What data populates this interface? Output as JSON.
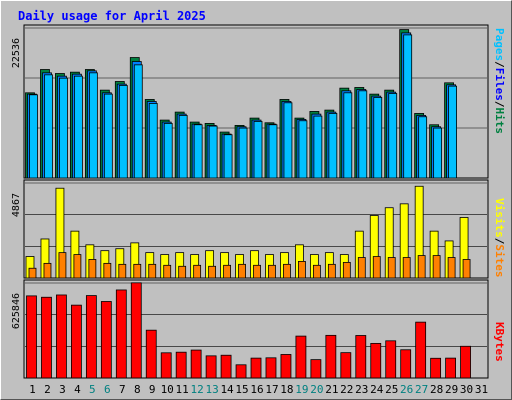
{
  "chart_data": {
    "type": "bar",
    "title": "Daily usage for April 2025",
    "categories": [
      "1",
      "2",
      "3",
      "4",
      "5",
      "6",
      "7",
      "8",
      "9",
      "10",
      "11",
      "12",
      "13",
      "14",
      "15",
      "16",
      "17",
      "18",
      "19",
      "20",
      "21",
      "22",
      "23",
      "24",
      "25",
      "26",
      "27",
      "28",
      "29",
      "30",
      "31"
    ],
    "weekend_days": [
      "5",
      "6",
      "12",
      "13",
      "19",
      "20",
      "26",
      "27"
    ],
    "colors": {
      "title": "#0000ff",
      "hits": "#008040",
      "files": "#0080ff",
      "files_legend": "#0000ff",
      "pages": "#00c0ff",
      "visits": "#ffff00",
      "visits_legend": "#ffff00",
      "sites": "#ff8000",
      "kbytes": "#ff0000",
      "weekend_label": "#008080",
      "plot_bg": "#c0c0c0"
    },
    "panels": [
      {
        "ymax_label": "22536",
        "ylim": [
          0,
          22536
        ],
        "legend": [
          "Pages",
          "Files",
          "Hits"
        ],
        "series": [
          {
            "name": "Hits",
            "values": [
              12800,
              16300,
              15700,
              15900,
              16300,
              13200,
              14500,
              18100,
              11800,
              8700,
              9900,
              8400,
              8200,
              6900,
              7900,
              9000,
              8300,
              11800,
              9000,
              10000,
              10200,
              13500,
              13600,
              12600,
              13200,
              22300,
              9700,
              8000,
              14300,
              null,
              null
            ]
          },
          {
            "name": "Files",
            "values": [
              12600,
              15800,
              15300,
              15600,
              16100,
              12800,
              14100,
              17500,
              11500,
              8400,
              9600,
              8100,
              7900,
              6600,
              7700,
              8700,
              8100,
              11500,
              8800,
              9600,
              9900,
              13100,
              13300,
              12300,
              12900,
              21800,
              9400,
              7700,
              14000,
              null,
              null
            ]
          },
          {
            "name": "Pages",
            "values": [
              12500,
              15500,
              15000,
              15300,
              15800,
              12600,
              13900,
              17000,
              11200,
              8200,
              9400,
              8000,
              7800,
              6500,
              7500,
              8500,
              8000,
              11300,
              8600,
              9300,
              9700,
              12800,
              13100,
              12100,
              12700,
              21500,
              9200,
              7500,
              13800,
              null,
              null
            ]
          }
        ]
      },
      {
        "ymax_label": "4867",
        "ylim": [
          0,
          4867
        ],
        "legend": [
          "Sites",
          "Visits"
        ],
        "series": [
          {
            "name": "Visits",
            "values": [
              1100,
              2000,
              4600,
              2400,
              1700,
              1400,
              1500,
              1800,
              1300,
              1200,
              1300,
              1200,
              1400,
              1300,
              1200,
              1400,
              1200,
              1300,
              1700,
              1200,
              1300,
              1200,
              2400,
              3200,
              3600,
              3800,
              4700,
              2400,
              1900,
              3100,
              null
            ]
          },
          {
            "name": "Sites",
            "values": [
              500,
              750,
              1300,
              1200,
              950,
              750,
              700,
              700,
              700,
              650,
              600,
              650,
              600,
              650,
              700,
              650,
              650,
              700,
              850,
              650,
              700,
              800,
              1050,
              1100,
              1050,
              1050,
              1150,
              1150,
              1050,
              950,
              null
            ]
          }
        ]
      },
      {
        "ymax_label": "625846",
        "ylim": [
          0,
          625846
        ],
        "legend": [
          "KBytes"
        ],
        "series": [
          {
            "name": "KBytes",
            "values": [
              541000,
              532000,
              547000,
              480000,
              543000,
              504000,
              580000,
              627000,
              315000,
              166000,
              170000,
              184000,
              146000,
              150000,
              87000,
              131000,
              133000,
              155000,
              276000,
              121000,
              281000,
              167000,
              280000,
              228000,
              245000,
              186000,
              368000,
              130000,
              131000,
              209000,
              null
            ]
          }
        ]
      }
    ]
  }
}
